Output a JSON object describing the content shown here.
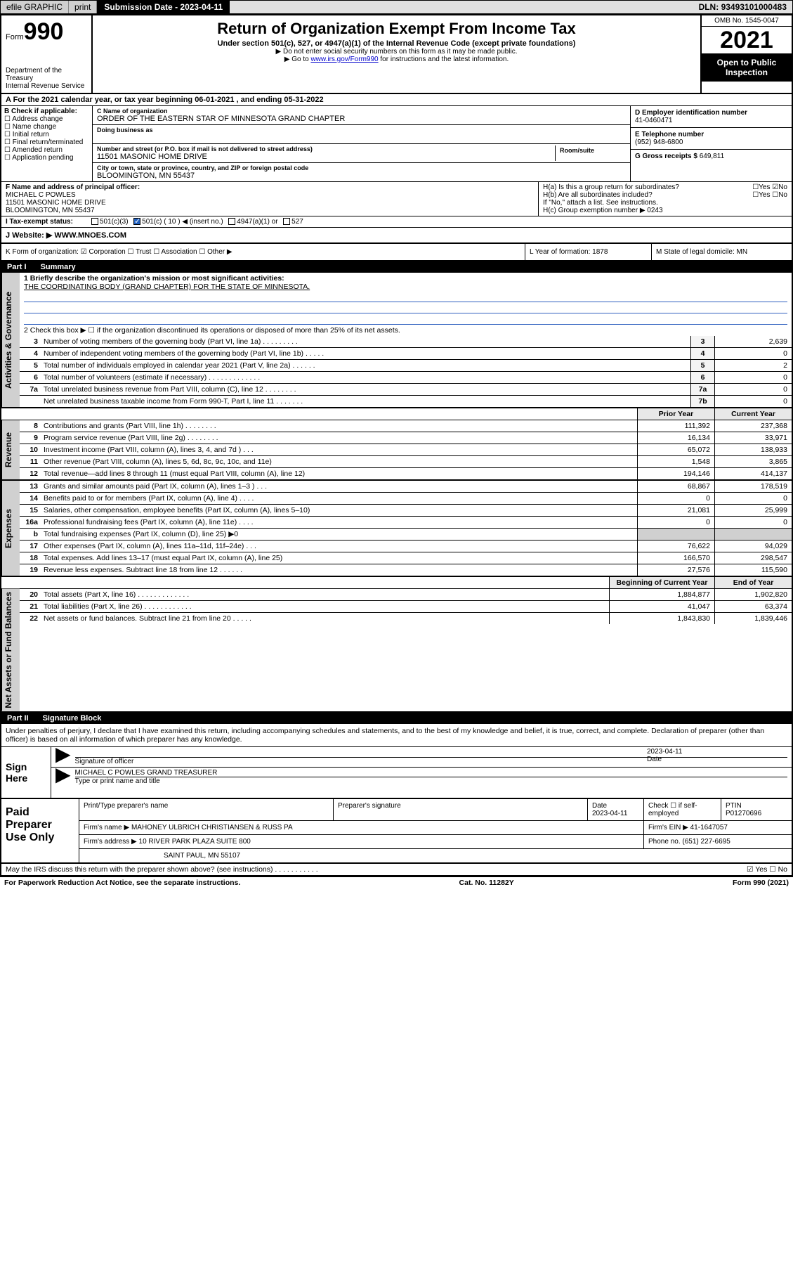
{
  "topbar": {
    "efile": "efile GRAPHIC",
    "print": "print",
    "sub_label": "Submission Date - ",
    "sub_date": "2023-04-11",
    "dln_label": "DLN: ",
    "dln": "93493101000483"
  },
  "header": {
    "form_word": "Form",
    "form_num": "990",
    "dept": "Department of the Treasury",
    "irs": "Internal Revenue Service",
    "title": "Return of Organization Exempt From Income Tax",
    "sub1": "Under section 501(c), 527, or 4947(a)(1) of the Internal Revenue Code (except private foundations)",
    "sub2": "Do not enter social security numbers on this form as it may be made public.",
    "sub3_a": "Go to ",
    "sub3_link": "www.irs.gov/Form990",
    "sub3_b": " for instructions and the latest information.",
    "omb": "OMB No. 1545-0047",
    "year": "2021",
    "inspect": "Open to Public Inspection"
  },
  "rowA": "A For the 2021 calendar year, or tax year beginning 06-01-2021   , and ending 05-31-2022",
  "entityB": {
    "label": "B Check if applicable:",
    "opts": [
      "Address change",
      "Name change",
      "Initial return",
      "Final return/terminated",
      "Amended return",
      "Application pending"
    ]
  },
  "entityC": {
    "name_lbl": "C Name of organization",
    "name": "ORDER OF THE EASTERN STAR OF MINNESOTA GRAND CHAPTER",
    "dba_lbl": "Doing business as",
    "addr_lbl": "Number and street (or P.O. box if mail is not delivered to street address)",
    "room_lbl": "Room/suite",
    "addr": "11501 MASONIC HOME DRIVE",
    "city_lbl": "City or town, state or province, country, and ZIP or foreign postal code",
    "city": "BLOOMINGTON, MN  55437"
  },
  "entityD": {
    "lbl": "D Employer identification number",
    "val": "41-0460471"
  },
  "entityE": {
    "lbl": "E Telephone number",
    "val": "(952) 948-6800"
  },
  "entityG": {
    "lbl": "G Gross receipts $",
    "val": "649,811"
  },
  "fg": {
    "f_lbl": "F  Name and address of principal officer:",
    "f_name": "MICHAEL C POWLES",
    "f_addr1": "11501 MASONIC HOME DRIVE",
    "f_addr2": "BLOOMINGTON, MN  55437",
    "ha": "H(a)  Is this a group return for subordinates?",
    "ha_yn": "Yes ☑No",
    "hb": "H(b)  Are all subordinates included?",
    "hb_yn": "Yes ☐No",
    "hb_note": "If \"No,\" attach a list. See instructions.",
    "hc": "H(c)  Group exemption number ▶   0243"
  },
  "taxI": {
    "lbl": "I   Tax-exempt status:",
    "o1": "501(c)(3)",
    "o2": "501(c) ( 10 ) ◀ (insert no.)",
    "o3": "4947(a)(1) or",
    "o4": "527"
  },
  "rowJ": {
    "lbl": "J   Website: ▶  ",
    "val": "WWW.MNOES.COM"
  },
  "rowK": "K Form of organization:  ☑ Corporation  ☐ Trust  ☐ Association  ☐ Other ▶",
  "rowL": "L Year of formation: 1878",
  "rowM": "M State of legal domicile: MN",
  "part1": {
    "tag": "Part I",
    "title": "Summary"
  },
  "summary": {
    "q1_lbl": "1  Briefly describe the organization's mission or most significant activities:",
    "q1_txt": "THE COORDINATING BODY (GRAND CHAPTER) FOR THE STATE OF MINNESOTA.",
    "q2": "2   Check this box ▶ ☐  if the organization discontinued its operations or disposed of more than 25% of its net assets.",
    "rows": [
      {
        "n": "3",
        "t": "Number of voting members of the governing body (Part VI, line 1a)   .   .   .   .   .   .   .   .   .",
        "b": "3",
        "v": "2,639"
      },
      {
        "n": "4",
        "t": "Number of independent voting members of the governing body (Part VI, line 1b)   .   .   .   .   .",
        "b": "4",
        "v": "0"
      },
      {
        "n": "5",
        "t": "Total number of individuals employed in calendar year 2021 (Part V, line 2a)   .   .   .   .   .   .",
        "b": "5",
        "v": "2"
      },
      {
        "n": "6",
        "t": "Total number of volunteers (estimate if necessary)   .   .   .   .   .   .   .   .   .   .   .   .   .",
        "b": "6",
        "v": "0"
      },
      {
        "n": "7a",
        "t": "Total unrelated business revenue from Part VIII, column (C), line 12   .   .   .   .   .   .   .   .",
        "b": "7a",
        "v": "0"
      },
      {
        "n": "",
        "t": "Net unrelated business taxable income from Form 990-T, Part I, line 11   .   .   .   .   .   .   .",
        "b": "7b",
        "v": "0"
      }
    ],
    "th": {
      "py": "Prior Year",
      "cy": "Current Year"
    },
    "rev": [
      {
        "n": "8",
        "t": "Contributions and grants (Part VIII, line 1h)   .   .   .   .   .   .   .   .",
        "p": "111,392",
        "c": "237,368"
      },
      {
        "n": "9",
        "t": "Program service revenue (Part VIII, line 2g)   .   .   .   .   .   .   .   .",
        "p": "16,134",
        "c": "33,971"
      },
      {
        "n": "10",
        "t": "Investment income (Part VIII, column (A), lines 3, 4, and 7d )   .   .   .",
        "p": "65,072",
        "c": "138,933"
      },
      {
        "n": "11",
        "t": "Other revenue (Part VIII, column (A), lines 5, 6d, 8c, 9c, 10c, and 11e)",
        "p": "1,548",
        "c": "3,865"
      },
      {
        "n": "12",
        "t": "Total revenue—add lines 8 through 11 (must equal Part VIII, column (A), line 12)",
        "p": "194,146",
        "c": "414,137"
      }
    ],
    "exp": [
      {
        "n": "13",
        "t": "Grants and similar amounts paid (Part IX, column (A), lines 1–3 )   .   .   .",
        "p": "68,867",
        "c": "178,519"
      },
      {
        "n": "14",
        "t": "Benefits paid to or for members (Part IX, column (A), line 4)   .   .   .   .",
        "p": "0",
        "c": "0"
      },
      {
        "n": "15",
        "t": "Salaries, other compensation, employee benefits (Part IX, column (A), lines 5–10)",
        "p": "21,081",
        "c": "25,999"
      },
      {
        "n": "16a",
        "t": "Professional fundraising fees (Part IX, column (A), line 11e)   .   .   .   .",
        "p": "0",
        "c": "0"
      },
      {
        "n": "b",
        "t": "Total fundraising expenses (Part IX, column (D), line 25) ▶0",
        "p": "",
        "c": "",
        "g": true
      },
      {
        "n": "17",
        "t": "Other expenses (Part IX, column (A), lines 11a–11d, 11f–24e)   .   .   .",
        "p": "76,622",
        "c": "94,029"
      },
      {
        "n": "18",
        "t": "Total expenses. Add lines 13–17 (must equal Part IX, column (A), line 25)",
        "p": "166,570",
        "c": "298,547"
      },
      {
        "n": "19",
        "t": "Revenue less expenses. Subtract line 18 from line 12   .   .   .   .   .   .",
        "p": "27,576",
        "c": "115,590"
      }
    ],
    "th2": {
      "py": "Beginning of Current Year",
      "cy": "End of Year"
    },
    "net": [
      {
        "n": "20",
        "t": "Total assets (Part X, line 16)   .   .   .   .   .   .   .   .   .   .   .   .   .",
        "p": "1,884,877",
        "c": "1,902,820"
      },
      {
        "n": "21",
        "t": "Total liabilities (Part X, line 26)   .   .   .   .   .   .   .   .   .   .   .   .",
        "p": "41,047",
        "c": "63,374"
      },
      {
        "n": "22",
        "t": "Net assets or fund balances. Subtract line 21 from line 20   .   .   .   .   .",
        "p": "1,843,830",
        "c": "1,839,446"
      }
    ]
  },
  "vtabs": {
    "gov": "Activities & Governance",
    "rev": "Revenue",
    "exp": "Expenses",
    "net": "Net Assets or Fund Balances"
  },
  "part2": {
    "tag": "Part II",
    "title": "Signature Block"
  },
  "sig": {
    "decl": "Under penalties of perjury, I declare that I have examined this return, including accompanying schedules and statements, and to the best of my knowledge and belief, it is true, correct, and complete. Declaration of preparer (other than officer) is based on all information of which preparer has any knowledge.",
    "here": "Sign Here",
    "sig_lbl": "Signature of officer",
    "date_lbl": "Date",
    "date": "2023-04-11",
    "name": "MICHAEL C POWLES GRAND TREASURER",
    "name_lbl": "Type or print name and title"
  },
  "prep": {
    "lab": "Paid Preparer Use Only",
    "r1": {
      "a": "Print/Type preparer's name",
      "b": "Preparer's signature",
      "c": "Date",
      "cd": "2023-04-11",
      "d": "Check ☐ if self-employed",
      "e": "PTIN",
      "ev": "P01270696"
    },
    "r2": {
      "a": "Firm's name      ▶",
      "av": "MAHONEY ULBRICH CHRISTIANSEN & RUSS PA",
      "b": "Firm's EIN ▶",
      "bv": "41-1647057"
    },
    "r3": {
      "a": "Firm's address ▶",
      "av": "10 RIVER PARK PLAZA SUITE 800",
      "b": "Phone no.",
      "bv": "(651) 227-6695"
    },
    "r4": "SAINT PAUL, MN  55107"
  },
  "discuss": {
    "q": "May the IRS discuss this return with the preparer shown above? (see instructions)   .   .   .   .   .   .   .   .   .   .   .",
    "yn": "☑ Yes  ☐ No"
  },
  "ftr": {
    "l": "For Paperwork Reduction Act Notice, see the separate instructions.",
    "m": "Cat. No. 11282Y",
    "r": "Form 990 (2021)"
  }
}
